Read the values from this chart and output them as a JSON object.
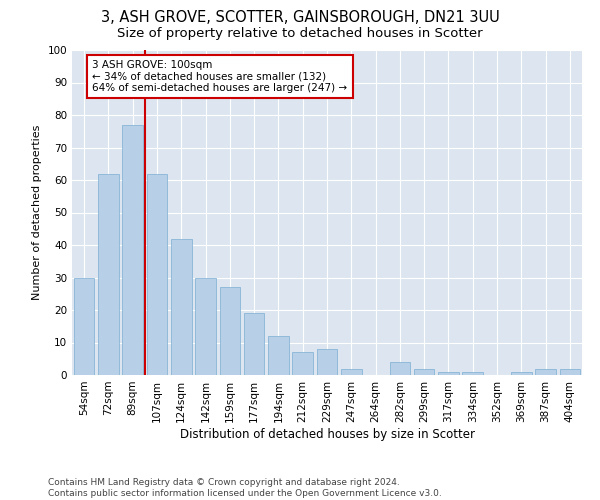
{
  "title1": "3, ASH GROVE, SCOTTER, GAINSBOROUGH, DN21 3UU",
  "title2": "Size of property relative to detached houses in Scotter",
  "xlabel": "Distribution of detached houses by size in Scotter",
  "ylabel": "Number of detached properties",
  "categories": [
    "54sqm",
    "72sqm",
    "89sqm",
    "107sqm",
    "124sqm",
    "142sqm",
    "159sqm",
    "177sqm",
    "194sqm",
    "212sqm",
    "229sqm",
    "247sqm",
    "264sqm",
    "282sqm",
    "299sqm",
    "317sqm",
    "334sqm",
    "352sqm",
    "369sqm",
    "387sqm",
    "404sqm"
  ],
  "bar_values": [
    30,
    62,
    77,
    62,
    42,
    30,
    27,
    19,
    12,
    7,
    8,
    2,
    0,
    4,
    2,
    1,
    1,
    0,
    1,
    2,
    2
  ],
  "bar_color": "#b8cfe8",
  "bar_edge_color": "#7aaed4",
  "vline_x": 2.5,
  "vline_color": "#cc0000",
  "annotation_text": "3 ASH GROVE: 100sqm\n← 34% of detached houses are smaller (132)\n64% of semi-detached houses are larger (247) →",
  "annotation_box_color": "#ffffff",
  "annotation_box_edge": "#cc0000",
  "plot_bg_color": "#dde6f0",
  "fig_bg_color": "#ffffff",
  "grid_color": "#ffffff",
  "ylim": [
    0,
    100
  ],
  "footer_text": "Contains HM Land Registry data © Crown copyright and database right 2024.\nContains public sector information licensed under the Open Government Licence v3.0.",
  "title1_fontsize": 10.5,
  "title2_fontsize": 9.5,
  "xlabel_fontsize": 8.5,
  "ylabel_fontsize": 8,
  "tick_fontsize": 7.5,
  "annotation_fontsize": 7.5,
  "footer_fontsize": 6.5
}
